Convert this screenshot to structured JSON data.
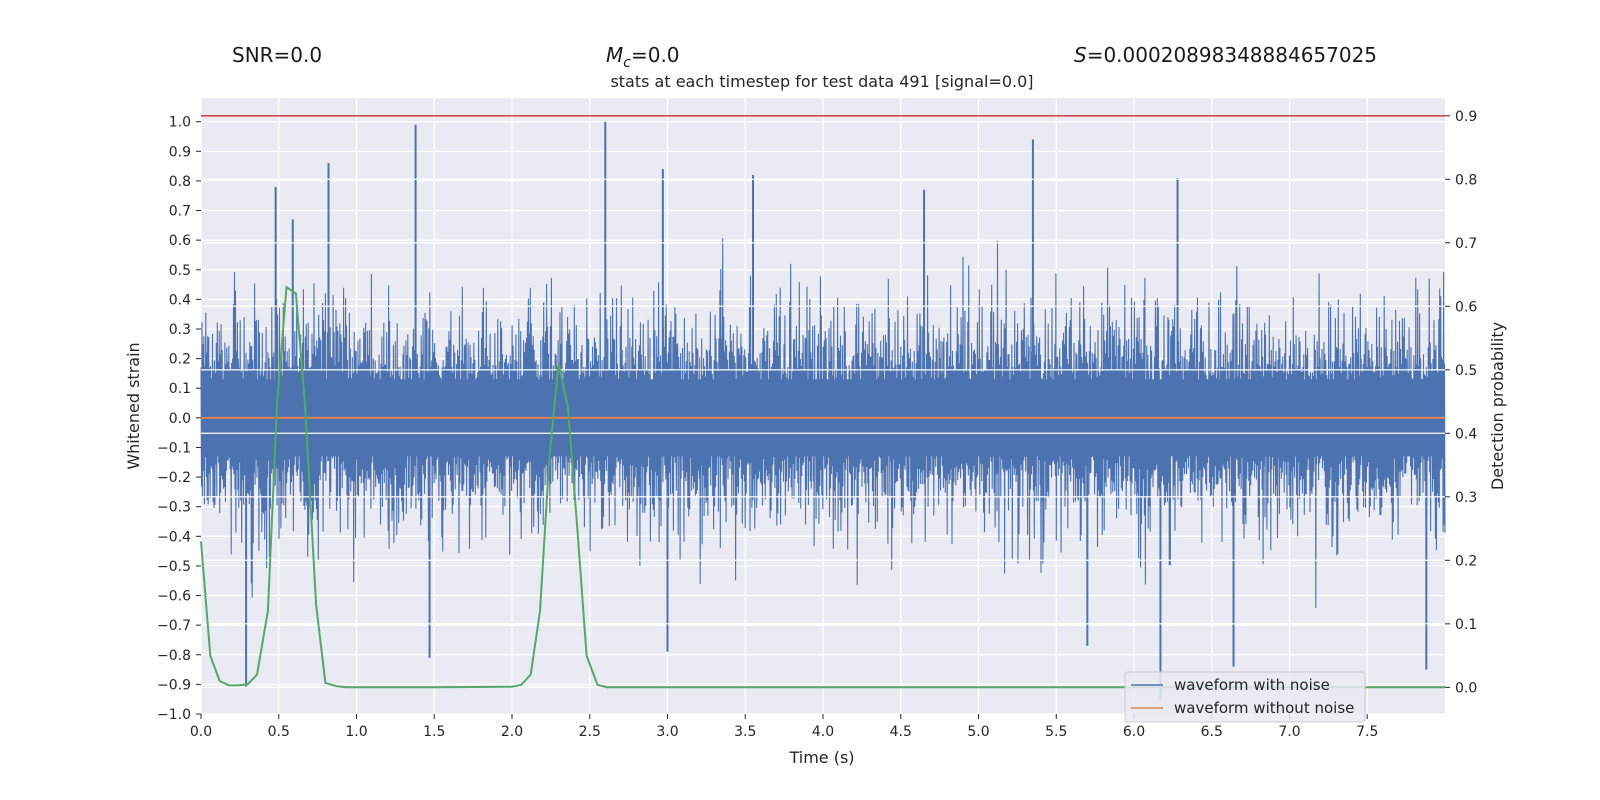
{
  "header": {
    "snr": "SNR=0.0",
    "mc_symbol": "M",
    "mc_sub": "c",
    "mc_value": "=0.0",
    "s_symbol": "S",
    "s_value": "=0.00020898348884657025"
  },
  "chart_data": {
    "type": "line",
    "title": "stats at each timestep for test data 491 [signal=0.0]",
    "xlabel": "Time (s)",
    "ylabel": "Whitened strain",
    "y2label": "Detection probability",
    "xlim": [
      0.0,
      8.0
    ],
    "ylim": [
      -1.0,
      1.08
    ],
    "y2lim": [
      -0.042,
      0.928
    ],
    "x_ticks": [
      "0.0",
      "0.5",
      "1.0",
      "1.5",
      "2.0",
      "2.5",
      "3.0",
      "3.5",
      "4.0",
      "4.5",
      "5.0",
      "5.5",
      "6.0",
      "6.5",
      "7.0",
      "7.5"
    ],
    "y_ticks": [
      "-1.0",
      "-0.9",
      "-0.8",
      "-0.7",
      "-0.6",
      "-0.5",
      "-0.4",
      "-0.3",
      "-0.2",
      "-0.1",
      "0.0",
      "0.1",
      "0.2",
      "0.3",
      "0.4",
      "0.5",
      "0.6",
      "0.7",
      "0.8",
      "0.9",
      "1.0"
    ],
    "y2_ticks": [
      "0.0",
      "0.1",
      "0.2",
      "0.3",
      "0.4",
      "0.5",
      "0.6",
      "0.7",
      "0.8",
      "0.9"
    ],
    "threshold": {
      "y2": 0.9,
      "color": "#c44e52"
    },
    "series": [
      {
        "name": "waveform with noise",
        "color": "#4c72b0",
        "axis": "left",
        "note": "dense noise band, sample count 8192, envelope approx within [-0.55, 0.55] with peaks near x markers",
        "peaks_high": [
          [
            0.48,
            0.78
          ],
          [
            0.59,
            0.67
          ],
          [
            0.82,
            0.86
          ],
          [
            1.38,
            0.99
          ],
          [
            2.6,
            1.0
          ],
          [
            2.97,
            0.84
          ],
          [
            3.55,
            0.82
          ],
          [
            5.35,
            0.94
          ],
          [
            6.28,
            0.81
          ],
          [
            4.65,
            0.77
          ]
        ],
        "peaks_low": [
          [
            0.29,
            -0.91
          ],
          [
            1.47,
            -0.81
          ],
          [
            3.0,
            -0.79
          ],
          [
            6.17,
            -0.95
          ],
          [
            6.64,
            -0.84
          ],
          [
            7.88,
            -0.85
          ],
          [
            5.7,
            -0.77
          ]
        ]
      },
      {
        "name": "waveform without noise",
        "color": "#dd8452",
        "axis": "left",
        "x": [
          0.0,
          8.0
        ],
        "values": [
          0.0,
          0.0
        ]
      },
      {
        "name": "detection probability",
        "color": "#55a868",
        "axis": "right",
        "x": [
          0.0,
          0.06,
          0.12,
          0.18,
          0.24,
          0.3,
          0.36,
          0.43,
          0.49,
          0.55,
          0.61,
          0.67,
          0.74,
          0.8,
          0.87,
          0.93,
          1.5,
          2.0,
          2.06,
          2.12,
          2.18,
          2.24,
          2.3,
          2.36,
          2.42,
          2.48,
          2.55,
          2.61,
          3.0,
          8.0
        ],
        "values": [
          0.23,
          0.05,
          0.01,
          0.003,
          0.003,
          0.005,
          0.02,
          0.12,
          0.45,
          0.63,
          0.62,
          0.44,
          0.13,
          0.007,
          0.002,
          0.0,
          0.0,
          0.001,
          0.004,
          0.02,
          0.12,
          0.36,
          0.51,
          0.44,
          0.25,
          0.05,
          0.004,
          0.0,
          0.0,
          0.0
        ]
      }
    ],
    "legend": {
      "position": "lower-right",
      "entries": [
        {
          "label": "waveform with noise",
          "color": "#4c72b0"
        },
        {
          "label": "waveform without noise",
          "color": "#dd8452"
        }
      ]
    },
    "colors": {
      "plot_bg": "#eaeaf2",
      "grid": "#ffffff",
      "text": "#262626"
    }
  }
}
